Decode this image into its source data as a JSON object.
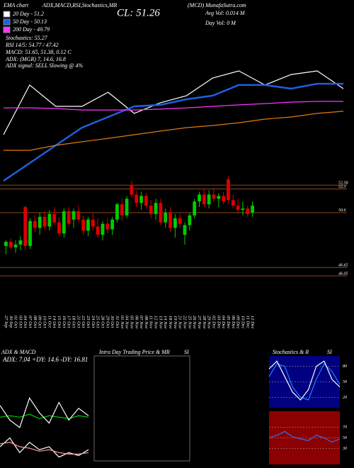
{
  "chart_data": [
    {
      "type": "candlestick",
      "categories": [
        "27 Sep",
        "30 Sep",
        "01 Oct",
        "03 Oct",
        "04 Oct",
        "07 Oct",
        "08 Oct",
        "09 Oct",
        "10 Oct",
        "11 Oct",
        "14 Oct",
        "15 Oct",
        "16 Oct",
        "17 Oct",
        "18 Oct",
        "21 Oct",
        "22 Oct",
        "23 Oct",
        "24 Oct",
        "25 Oct",
        "28 Oct",
        "29 Oct",
        "30 Oct",
        "31 Oct",
        "01 Nov",
        "04 Nov",
        "05 Nov",
        "06 Nov",
        "07 Nov",
        "08 Nov",
        "11 Nov",
        "12 Nov",
        "13 Nov",
        "14 Nov",
        "18 Nov",
        "19 Nov",
        "21 Nov",
        "22 Nov",
        "25 Nov",
        "26 Nov",
        "27 Nov",
        "28 Nov",
        "29 Nov",
        "02 Dec",
        "03 Dec",
        "04 Dec",
        "05 Dec",
        "06 Dec",
        "09 Dec",
        "10 Dec",
        "11 Dec",
        "12 Dec"
      ],
      "open": [
        48.2,
        48.5,
        48.1,
        48.3,
        51.0,
        48.2,
        50.0,
        49.5,
        50.3,
        49.6,
        50.5,
        49.9,
        49.1,
        50.7,
        50.1,
        50.7,
        50.1,
        49.3,
        50.1,
        49.6,
        49.0,
        49.8,
        49.4,
        50.1,
        51.2,
        50.4,
        52.6,
        51.9,
        51.3,
        51.8,
        51.1,
        50.5,
        51.3,
        49.9,
        50.6,
        49.5,
        50.2,
        49.0,
        49.7,
        50.4,
        51.4,
        51.9,
        51.2,
        51.9,
        51.6,
        51.8,
        53.0,
        51.5,
        51.1,
        50.8,
        50.9,
        50.6
      ],
      "high": [
        48.6,
        48.7,
        48.6,
        48.9,
        51.1,
        50.2,
        50.4,
        50.6,
        50.7,
        50.8,
        51.0,
        50.3,
        50.9,
        51.0,
        50.9,
        51.1,
        50.4,
        50.3,
        50.6,
        50.2,
        50.0,
        50.2,
        50.3,
        51.3,
        51.6,
        51.8,
        52.9,
        52.2,
        52.1,
        52.0,
        51.5,
        51.6,
        51.6,
        50.9,
        51.0,
        50.5,
        50.5,
        49.9,
        50.6,
        51.6,
        52.1,
        52.3,
        52.2,
        52.4,
        52.0,
        52.1,
        53.2,
        51.9,
        51.6,
        51.4,
        51.1,
        51.4
      ],
      "low": [
        47.6,
        48.0,
        47.7,
        47.9,
        47.9,
        48.0,
        49.2,
        49.0,
        49.4,
        49.3,
        49.7,
        48.9,
        48.8,
        49.6,
        49.5,
        49.9,
        49.0,
        48.9,
        49.3,
        48.8,
        48.6,
        49.1,
        49.0,
        49.9,
        50.0,
        50.2,
        51.7,
        51.0,
        50.8,
        50.9,
        50.2,
        50.1,
        49.7,
        49.5,
        49.2,
        48.8,
        49.5,
        48.3,
        49.3,
        50.2,
        51.0,
        51.0,
        50.9,
        51.4,
        51.0,
        51.2,
        51.2,
        50.9,
        50.5,
        50.4,
        50.3,
        50.3
      ],
      "close": [
        48.5,
        48.1,
        48.3,
        48.6,
        48.2,
        50.0,
        49.5,
        50.3,
        49.6,
        50.5,
        49.9,
        49.1,
        50.7,
        49.8,
        50.7,
        50.1,
        49.3,
        50.1,
        49.6,
        49.0,
        49.8,
        49.4,
        50.1,
        51.2,
        50.4,
        51.6,
        51.9,
        51.3,
        51.8,
        51.1,
        50.5,
        51.3,
        49.9,
        50.6,
        49.5,
        50.2,
        49.8,
        49.7,
        50.4,
        51.4,
        51.9,
        51.2,
        51.9,
        51.6,
        51.8,
        51.4,
        51.5,
        51.1,
        50.8,
        50.9,
        50.5,
        51.1
      ],
      "up_color": "#00cc00",
      "down_color": "#dd0000",
      "ylim": [
        46,
        53.4
      ],
      "levels": [
        52.58,
        52.3,
        50.6,
        46.65,
        46.05
      ],
      "level_color": "#8b4513"
    },
    {
      "type": "line",
      "title": "EMA chart",
      "annotations": [
        "ADX,MACD,RSI,Stochastics,MR",
        "(MCD) MunafaSutra.com",
        "CL: 51.26",
        "Avg Vol: 0.014 M",
        "Day Vol: 0 M",
        "Stochastics: 55.27",
        "RSI 14/5: 54.77 / 47.42",
        "MACD: 51.65, 51.38, 0.12 C",
        "ADX: (MGR) 7, 14.6, 16.8",
        "ADX signal: SELL Slowing @ 4%"
      ],
      "categories": [
        null,
        null,
        null,
        null,
        null,
        null,
        null,
        null,
        null,
        null,
        null,
        null,
        null,
        null
      ],
      "series": [
        {
          "name": "20 Day - 51.2",
          "color": "#ffffff",
          "values": [
            49.46,
            52.49,
            51.19,
            51.19,
            52.05,
            50.76,
            51.41,
            51.84,
            52.92,
            53.35,
            52.49,
            53.13,
            53.35,
            52.27
          ]
        },
        {
          "name": "50 Day - 50.13",
          "color": "#1f5fe0",
          "values": [
            46.65,
            47.73,
            48.81,
            49.89,
            50.54,
            51.19,
            51.28,
            51.62,
            51.84,
            52.49,
            52.49,
            52.27,
            52.57,
            52.57
          ]
        },
        {
          "name": "200 Day - 49.79",
          "color": "#ff33ff",
          "values": [
            51.1,
            51.1,
            51.06,
            50.97,
            50.97,
            50.97,
            51.02,
            51.1,
            51.19,
            51.28,
            51.36,
            51.45,
            51.49,
            51.49
          ]
        },
        {
          "color": "#e07a10",
          "values": [
            48.51,
            48.51,
            48.81,
            49.03,
            49.24,
            49.46,
            49.68,
            49.89,
            50.02,
            50.19,
            50.41,
            50.54,
            50.76,
            50.89
          ]
        }
      ],
      "ylim": [
        46,
        54
      ]
    },
    {
      "type": "line",
      "title": "ADX & MACD",
      "annotations": [
        "ADX: 7.04",
        "+DY: 14.6",
        "-DY: 16.81"
      ],
      "categories": [
        null,
        null,
        null,
        null,
        null,
        null,
        null,
        null,
        null,
        null
      ],
      "series": [
        {
          "color": "#00cc00",
          "values": [
            32,
            33,
            32,
            34,
            31,
            33,
            32,
            31,
            33,
            32
          ]
        },
        {
          "color": "#ffffff",
          "values": [
            40,
            30,
            25,
            45,
            35,
            28,
            42,
            30,
            38,
            33
          ]
        },
        {
          "color": "#ffffff",
          "values": [
            12,
            18,
            8,
            15,
            10,
            12,
            5,
            8,
            6,
            10
          ]
        },
        {
          "color": "#ff9999",
          "values": [
            14,
            15,
            12,
            11,
            9,
            10,
            8,
            7,
            7,
            8
          ]
        }
      ],
      "ylim": [
        0,
        60
      ]
    },
    {
      "type": "box",
      "title": "Intra Day Trading Price & MR",
      "subtitle": "SI"
    },
    {
      "type": "line",
      "title": "Stochastics & R",
      "subtitle": "SI",
      "categories": [
        null,
        null,
        null,
        null,
        null,
        null,
        null,
        null,
        null,
        null
      ],
      "series": [
        {
          "color": "#1f7fff",
          "values": [
            60,
            85,
            80,
            40,
            20,
            15,
            55,
            85,
            70,
            45
          ]
        },
        {
          "color": "#ffffff",
          "values": [
            75,
            90,
            60,
            30,
            15,
            35,
            80,
            90,
            55,
            40
          ]
        }
      ],
      "ylim": [
        0,
        100
      ],
      "yticks": [
        80,
        50,
        20
      ],
      "background": "#000080"
    },
    {
      "type": "line",
      "categories": [
        null,
        null,
        null,
        null,
        null,
        null,
        null,
        null,
        null,
        null
      ],
      "series": [
        {
          "color": "#3070ff",
          "values": [
            50,
            55,
            62,
            52,
            48,
            45,
            55,
            50,
            42,
            48
          ]
        }
      ],
      "ylim": [
        0,
        100
      ],
      "yticks": [
        70,
        50,
        30
      ],
      "background": "#8b0000"
    }
  ]
}
